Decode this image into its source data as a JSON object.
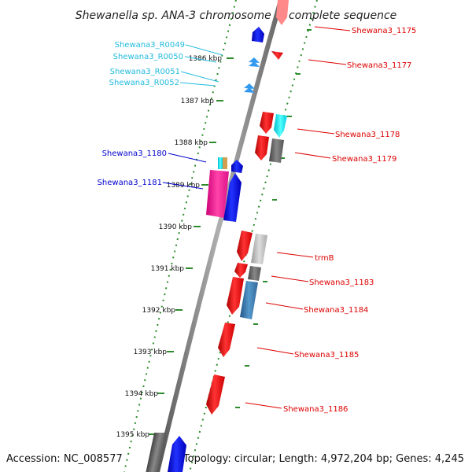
{
  "title": "Shewanella sp. ANA-3 chromosome 1, complete sequence",
  "accession": "Accession: NC_008577",
  "topology": "Topology: circular; Length: 4,972,204 bp; Genes: 4,245",
  "scale_labels": [
    "1386 kbp",
    "1387 kbp",
    "1388 kbp",
    "1389 kbp",
    "1390 kbp",
    "1391 kbp",
    "1392 kbp",
    "1393 kbp",
    "1394 kbp",
    "1395 kbp"
  ],
  "genes_right": [
    {
      "name": "Shewana3_1175",
      "color": "#dd0000"
    },
    {
      "name": "Shewana3_1177",
      "color": "#dd0000"
    },
    {
      "name": "Shewana3_1178",
      "color": "#dd0000"
    },
    {
      "name": "Shewana3_1179",
      "color": "#dd0000"
    },
    {
      "name": "trmB",
      "color": "#dd0000"
    },
    {
      "name": "Shewana3_1183",
      "color": "#dd0000"
    },
    {
      "name": "Shewana3_1184",
      "color": "#dd0000"
    },
    {
      "name": "Shewana3_1185",
      "color": "#dd0000"
    },
    {
      "name": "Shewana3_1186",
      "color": "#dd0000"
    }
  ],
  "genes_left": [
    {
      "name": "Shewana3_R0049",
      "color": "#22bbdd"
    },
    {
      "name": "Shewana3_R0050",
      "color": "#22bbdd"
    },
    {
      "name": "Shewana3_R0051",
      "color": "#22bbdd"
    },
    {
      "name": "Shewana3_R0052",
      "color": "#22bbdd"
    },
    {
      "name": "Shewana3_1180",
      "color": "#0000cc"
    },
    {
      "name": "Shewana3_1181",
      "color": "#0000cc"
    }
  ]
}
